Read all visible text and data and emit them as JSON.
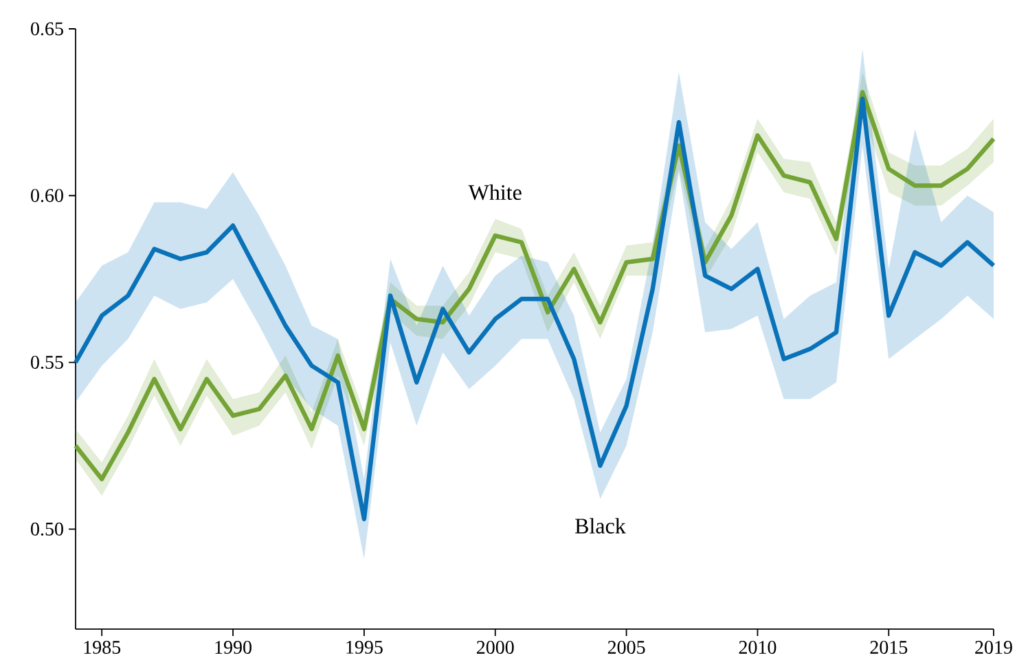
{
  "chart_data": {
    "type": "line",
    "x": [
      1984,
      1985,
      1986,
      1987,
      1988,
      1989,
      1990,
      1991,
      1992,
      1993,
      1994,
      1995,
      1996,
      1997,
      1998,
      1999,
      2000,
      2001,
      2002,
      2003,
      2004,
      2005,
      2006,
      2007,
      2008,
      2009,
      2010,
      2011,
      2012,
      2013,
      2014,
      2015,
      2016,
      2017,
      2018,
      2019
    ],
    "xlim": [
      1984,
      2019
    ],
    "xticks": [
      1985,
      1990,
      1995,
      2000,
      2005,
      2010,
      2015,
      2019
    ],
    "ylim": [
      0.47,
      0.65
    ],
    "yticks": [
      {
        "value": 0.5,
        "label": "0.50"
      },
      0.55,
      {
        "value": 0.6,
        "label": "0.60"
      },
      0.65
    ],
    "marker": "none",
    "line_style": "solid",
    "series": [
      {
        "name": "White",
        "color": "#74a336",
        "values": [
          0.525,
          0.515,
          0.529,
          0.545,
          0.53,
          0.545,
          0.534,
          0.536,
          0.546,
          0.53,
          0.552,
          0.53,
          0.569,
          0.563,
          0.562,
          0.572,
          0.588,
          0.586,
          0.565,
          0.578,
          0.562,
          0.58,
          0.581,
          0.615,
          0.58,
          0.594,
          0.618,
          0.606,
          0.604,
          0.587,
          0.631,
          0.608,
          0.603,
          0.603,
          0.608,
          0.617
        ],
        "lower": [
          0.521,
          0.51,
          0.524,
          0.54,
          0.525,
          0.54,
          0.528,
          0.531,
          0.541,
          0.524,
          0.546,
          0.525,
          0.565,
          0.558,
          0.557,
          0.567,
          0.583,
          0.581,
          0.559,
          0.574,
          0.557,
          0.576,
          0.576,
          0.608,
          0.575,
          0.588,
          0.613,
          0.601,
          0.599,
          0.582,
          0.625,
          0.601,
          0.597,
          0.597,
          0.603,
          0.61
        ],
        "upper": [
          0.53,
          0.52,
          0.534,
          0.551,
          0.535,
          0.551,
          0.539,
          0.541,
          0.552,
          0.535,
          0.557,
          0.535,
          0.574,
          0.567,
          0.567,
          0.577,
          0.593,
          0.59,
          0.57,
          0.583,
          0.567,
          0.585,
          0.586,
          0.62,
          0.584,
          0.599,
          0.623,
          0.611,
          0.61,
          0.592,
          0.637,
          0.613,
          0.609,
          0.609,
          0.614,
          0.623
        ]
      },
      {
        "name": "Black",
        "color": "#0a72b8",
        "values": [
          0.55,
          0.564,
          0.57,
          0.584,
          0.581,
          0.583,
          0.591,
          0.576,
          0.561,
          0.549,
          0.544,
          0.503,
          0.57,
          0.544,
          0.566,
          0.553,
          0.563,
          0.569,
          0.569,
          0.551,
          0.519,
          0.537,
          0.572,
          0.622,
          0.576,
          0.572,
          0.578,
          0.551,
          0.554,
          0.559,
          0.629,
          0.564,
          0.583,
          0.579,
          0.586,
          0.579
        ],
        "lower": [
          0.538,
          0.549,
          0.557,
          0.57,
          0.566,
          0.568,
          0.575,
          0.561,
          0.546,
          0.536,
          0.531,
          0.491,
          0.556,
          0.531,
          0.553,
          0.542,
          0.549,
          0.557,
          0.557,
          0.539,
          0.509,
          0.525,
          0.559,
          0.607,
          0.559,
          0.56,
          0.564,
          0.539,
          0.539,
          0.544,
          0.615,
          0.551,
          0.557,
          0.563,
          0.57,
          0.563
        ],
        "upper": [
          0.568,
          0.579,
          0.583,
          0.598,
          0.598,
          0.596,
          0.607,
          0.594,
          0.579,
          0.561,
          0.557,
          0.515,
          0.581,
          0.561,
          0.579,
          0.564,
          0.576,
          0.582,
          0.58,
          0.564,
          0.529,
          0.545,
          0.585,
          0.637,
          0.592,
          0.584,
          0.592,
          0.563,
          0.57,
          0.574,
          0.644,
          0.578,
          0.62,
          0.592,
          0.6,
          0.595
        ]
      }
    ]
  }
}
